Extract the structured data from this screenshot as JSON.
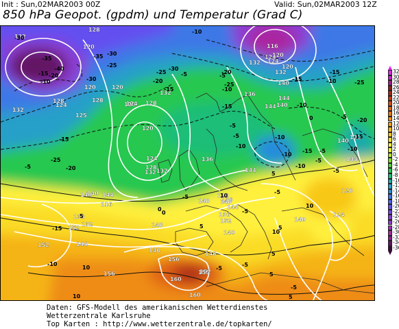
{
  "header": {
    "init": "Init : Sun,02MAR2003 00Z",
    "valid": "Valid: Sun,02MAR2003 12Z",
    "title": "850 hPa Geopot. (gpdm) und Temperatur (Grad C)"
  },
  "colorbar": {
    "labels": [
      "32",
      "30",
      "28",
      "26",
      "24",
      "22",
      "20",
      "18",
      "16",
      "14",
      "12",
      "10",
      "8",
      "6",
      "4",
      "2",
      "0",
      "-2",
      "-4",
      "-6",
      "-8",
      "-10",
      "-12",
      "-14",
      "-16",
      "-18",
      "-20",
      "-22",
      "-24",
      "-26",
      "-28",
      "-30",
      "-32",
      "-34",
      "-36"
    ],
    "colors": [
      "#e028e6",
      "#c81ec8",
      "#a01e8c",
      "#8c1e1e",
      "#a82814",
      "#c03c14",
      "#d25014",
      "#e06414",
      "#e67814",
      "#ee8c14",
      "#f0a014",
      "#f5b414",
      "#f8c818",
      "#fadc28",
      "#fff03c",
      "#e6f028",
      "#b4e628",
      "#82dc28",
      "#50d23c",
      "#28c850",
      "#1ebe78",
      "#1eaaaa",
      "#28a0c8",
      "#288cdc",
      "#3c78e6",
      "#5064f0",
      "#6450f0",
      "#7846e6",
      "#8c3cd2",
      "#963cc8",
      "#a032b4",
      "#aa28a0",
      "#8c1e8c",
      "#641464",
      "#3c0a3c"
    ]
  },
  "map": {
    "geopotential_labels": [
      "128",
      "132",
      "120",
      "116",
      "124",
      "120",
      "128",
      "124",
      "120",
      "128",
      "132",
      "128",
      "120",
      "124",
      "125",
      "132",
      "120",
      "124",
      "128",
      "132",
      "136",
      "132",
      "136",
      "132",
      "140",
      "148",
      "152",
      "148",
      "148",
      "140",
      "144",
      "140",
      "144",
      "152",
      "152",
      "156",
      "160",
      "156",
      "160",
      "155",
      "132",
      "124",
      "120",
      "140",
      "132",
      "120",
      "144",
      "140",
      "136",
      "144",
      "148",
      "144",
      "148",
      "116",
      "120",
      "124",
      "128",
      "144",
      "132",
      "140",
      "152",
      "144",
      "136",
      "136",
      "140"
    ],
    "temperature_labels": [
      "-30",
      "-35",
      "-40",
      "-30",
      "-35",
      "-30",
      "-25",
      "-20",
      "-15",
      "-10",
      "-25",
      "-30",
      "-20",
      "-15",
      "-10",
      "-5",
      "-5",
      "-10",
      "-15",
      "-20",
      "-25",
      "-10",
      "-15",
      "-10",
      "-5",
      "0",
      "-5",
      "5",
      "5",
      "10",
      "10",
      "5",
      "-10",
      "-15",
      "-10",
      "-5",
      "-5",
      "-5",
      "-5",
      "5",
      "-5",
      "10",
      "5",
      "10",
      "5",
      "-5",
      "-5",
      "-10",
      "-20",
      "-25",
      "-15",
      "-5",
      "0",
      "0",
      "-5",
      "5",
      "10",
      "-10",
      "-10",
      "-15",
      "-5",
      "-5",
      "-10",
      "-15",
      "-20",
      "-25",
      "-15"
    ]
  },
  "footer": {
    "line1": "Daten: GFS-Modell des amerikanischen Wetterdienstes",
    "line2": "Wetterzentrale Karlsruhe",
    "line3": "Top Karten :  http://www.wetterzentrale.de/topkarten/"
  }
}
